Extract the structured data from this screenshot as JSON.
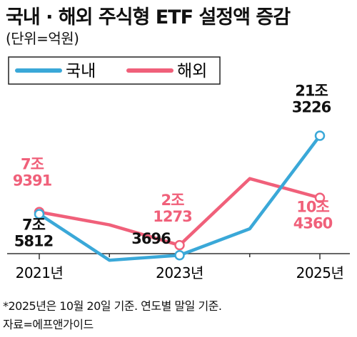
{
  "title": "국내 · 해외 주식형 ETF  설정액 증감",
  "unit": "(단위=억원)",
  "notes": [
    "*2025년은 10월 20일 기준. 연도별  말일 기준.",
    "자료=에프앤가이드"
  ],
  "chart_data": {
    "type": "line",
    "title": "국내 · 해외 주식형 ETF  설정액 증감",
    "ylabel": "(단위=억원)",
    "x": [
      2021,
      2022,
      2023,
      2024,
      2025
    ],
    "x_tick_labels": [
      {
        "x": 2021,
        "label": "2021년"
      },
      {
        "x": 2023,
        "label": "2023년"
      },
      {
        "x": 2025,
        "label": "2025년"
      }
    ],
    "ylim": [
      -6000,
      280000
    ],
    "legend_position": "top",
    "series": [
      {
        "name": "국내",
        "color": "#3aa8d8",
        "values": [
          75812,
          -5000,
          3696,
          50000,
          213226
        ]
      },
      {
        "name": "해외",
        "color": "#f0607a",
        "values": [
          79391,
          57000,
          21273,
          138000,
          104360
        ]
      }
    ],
    "data_labels": [
      {
        "series": 0,
        "x": 2021,
        "lines": [
          "7조",
          "5812"
        ],
        "color": "#111111"
      },
      {
        "series": 0,
        "x": 2023,
        "lines": [
          "3696"
        ],
        "color": "#111111"
      },
      {
        "series": 0,
        "x": 2025,
        "lines": [
          "21조",
          "3226"
        ],
        "color": "#111111"
      },
      {
        "series": 1,
        "x": 2021,
        "lines": [
          "7조",
          "9391"
        ],
        "color": "#f0607a"
      },
      {
        "series": 1,
        "x": 2023,
        "lines": [
          "2조",
          "1273"
        ],
        "color": "#f0607a"
      },
      {
        "series": 1,
        "x": 2025,
        "lines": [
          "10조",
          "4360"
        ],
        "color": "#f0607a"
      }
    ]
  }
}
